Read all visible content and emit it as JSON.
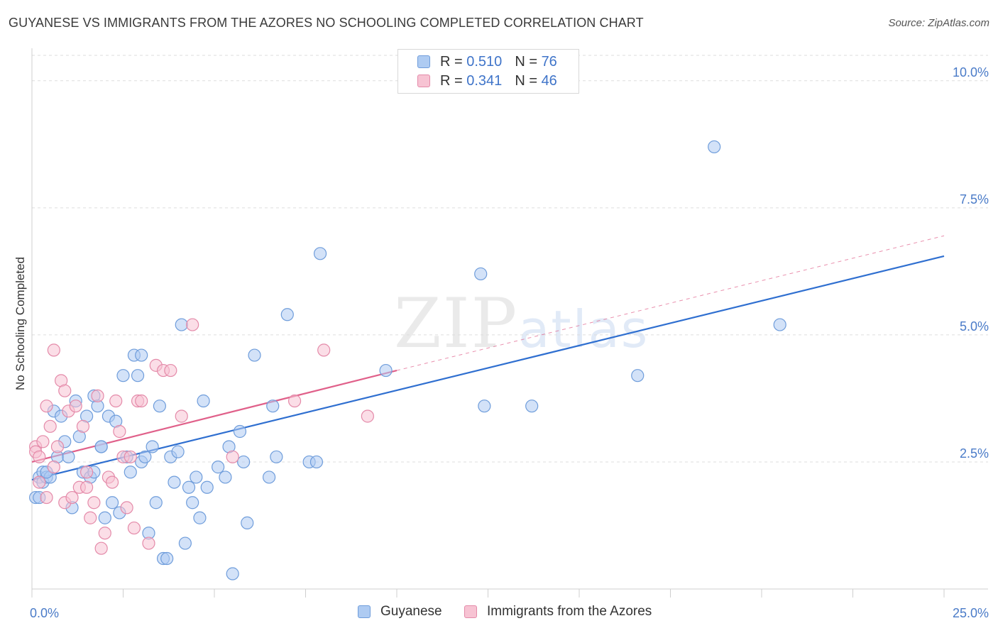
{
  "title": "GUYANESE VS IMMIGRANTS FROM THE AZORES NO SCHOOLING COMPLETED CORRELATION CHART",
  "source": "Source: ZipAtlas.com",
  "watermark": {
    "zip": "ZIP",
    "atlas": "atlas"
  },
  "legend_top": [
    {
      "r_label": "R = ",
      "r_value": "0.510",
      "n_label": "N = ",
      "n_value": "76"
    },
    {
      "r_label": "R = ",
      "r_value": "0.341",
      "n_label": "N = ",
      "n_value": "46"
    }
  ],
  "colors": {
    "blue_fill": "#aecbf2",
    "blue_stroke": "#6f9ddb",
    "blue_line": "#2f6fd0",
    "pink_fill": "#f7c3d3",
    "pink_stroke": "#e48aa9",
    "pink_line": "#e0608a",
    "grid": "#dddddd",
    "tick_text": "#4a7bc8"
  },
  "chart_data": {
    "type": "scatter",
    "title": "GUYANESE VS IMMIGRANTS FROM THE AZORES NO SCHOOLING COMPLETED CORRELATION CHART",
    "xlabel": "",
    "ylabel": "No Schooling Completed",
    "xlim": [
      0,
      25
    ],
    "ylim": [
      0,
      10.5
    ],
    "x_tick_labels": [
      "0.0%",
      "25.0%"
    ],
    "y_ticks": [
      2.5,
      5.0,
      7.5,
      10.0
    ],
    "y_tick_labels": [
      "2.5%",
      "5.0%",
      "7.5%",
      "10.0%"
    ],
    "grid": true,
    "legend_position": "top-center",
    "series": [
      {
        "name": "Guyanese",
        "r": 0.51,
        "n": 76,
        "trend": {
          "x": [
            0,
            25
          ],
          "y": [
            2.15,
            6.55
          ]
        },
        "points": [
          [
            0.1,
            1.8
          ],
          [
            0.2,
            2.2
          ],
          [
            0.3,
            2.3
          ],
          [
            0.3,
            2.1
          ],
          [
            0.4,
            2.2
          ],
          [
            0.5,
            2.2
          ],
          [
            0.6,
            3.5
          ],
          [
            0.7,
            2.6
          ],
          [
            0.8,
            3.4
          ],
          [
            0.9,
            2.9
          ],
          [
            1.0,
            2.6
          ],
          [
            1.1,
            1.6
          ],
          [
            1.2,
            3.7
          ],
          [
            1.3,
            3.0
          ],
          [
            1.4,
            2.3
          ],
          [
            1.5,
            3.4
          ],
          [
            1.6,
            2.2
          ],
          [
            1.7,
            2.3
          ],
          [
            1.7,
            3.8
          ],
          [
            1.8,
            3.6
          ],
          [
            1.9,
            2.8
          ],
          [
            1.9,
            2.8
          ],
          [
            2.0,
            1.4
          ],
          [
            2.1,
            3.4
          ],
          [
            2.2,
            1.7
          ],
          [
            2.3,
            3.3
          ],
          [
            2.4,
            1.5
          ],
          [
            2.5,
            4.2
          ],
          [
            2.6,
            2.6
          ],
          [
            2.7,
            2.3
          ],
          [
            2.8,
            4.6
          ],
          [
            2.9,
            4.2
          ],
          [
            3.0,
            2.5
          ],
          [
            3.0,
            4.6
          ],
          [
            3.1,
            2.6
          ],
          [
            3.2,
            1.1
          ],
          [
            3.3,
            2.8
          ],
          [
            3.4,
            1.7
          ],
          [
            3.5,
            3.6
          ],
          [
            3.6,
            0.6
          ],
          [
            3.7,
            0.6
          ],
          [
            3.8,
            2.6
          ],
          [
            3.9,
            2.1
          ],
          [
            4.0,
            2.7
          ],
          [
            4.1,
            5.2
          ],
          [
            4.2,
            0.9
          ],
          [
            4.3,
            2.0
          ],
          [
            4.4,
            1.7
          ],
          [
            4.5,
            2.2
          ],
          [
            4.6,
            1.4
          ],
          [
            4.7,
            3.7
          ],
          [
            4.8,
            2.0
          ],
          [
            5.1,
            2.4
          ],
          [
            5.3,
            2.2
          ],
          [
            5.4,
            2.8
          ],
          [
            5.5,
            0.3
          ],
          [
            5.7,
            3.1
          ],
          [
            5.8,
            2.5
          ],
          [
            5.9,
            1.3
          ],
          [
            6.1,
            4.6
          ],
          [
            6.6,
            3.6
          ],
          [
            6.5,
            2.2
          ],
          [
            6.7,
            2.6
          ],
          [
            7.0,
            5.4
          ],
          [
            7.6,
            2.5
          ],
          [
            7.8,
            2.5
          ],
          [
            7.9,
            6.6
          ],
          [
            9.7,
            4.3
          ],
          [
            12.3,
            6.2
          ],
          [
            12.4,
            3.6
          ],
          [
            13.7,
            3.6
          ],
          [
            16.6,
            4.2
          ],
          [
            18.7,
            8.7
          ],
          [
            20.5,
            5.2
          ],
          [
            0.2,
            1.8
          ],
          [
            0.4,
            2.3
          ]
        ]
      },
      {
        "name": "Immigrants from the Azores",
        "r": 0.341,
        "n": 46,
        "trend": {
          "x": [
            0,
            10
          ],
          "y": [
            2.5,
            4.3
          ]
        },
        "trend_extension": {
          "x": [
            10,
            25
          ],
          "y": [
            4.3,
            6.95
          ]
        },
        "points": [
          [
            0.1,
            2.8
          ],
          [
            0.1,
            2.7
          ],
          [
            0.2,
            2.1
          ],
          [
            0.3,
            2.9
          ],
          [
            0.4,
            1.8
          ],
          [
            0.4,
            3.6
          ],
          [
            0.5,
            3.2
          ],
          [
            0.6,
            2.4
          ],
          [
            0.6,
            4.7
          ],
          [
            0.7,
            2.8
          ],
          [
            0.8,
            4.1
          ],
          [
            0.9,
            3.9
          ],
          [
            0.9,
            1.7
          ],
          [
            1.0,
            3.5
          ],
          [
            1.1,
            1.8
          ],
          [
            1.2,
            3.6
          ],
          [
            1.3,
            2.0
          ],
          [
            1.4,
            3.2
          ],
          [
            1.5,
            2.0
          ],
          [
            1.6,
            1.4
          ],
          [
            1.7,
            1.7
          ],
          [
            1.8,
            3.8
          ],
          [
            1.9,
            0.8
          ],
          [
            2.0,
            1.1
          ],
          [
            2.1,
            2.2
          ],
          [
            2.2,
            2.1
          ],
          [
            2.3,
            3.7
          ],
          [
            2.4,
            3.1
          ],
          [
            2.5,
            2.6
          ],
          [
            2.6,
            1.6
          ],
          [
            2.7,
            2.6
          ],
          [
            2.8,
            1.2
          ],
          [
            2.9,
            3.7
          ],
          [
            3.0,
            3.7
          ],
          [
            3.2,
            0.9
          ],
          [
            3.4,
            4.4
          ],
          [
            3.6,
            4.3
          ],
          [
            3.8,
            4.3
          ],
          [
            4.1,
            3.4
          ],
          [
            4.4,
            5.2
          ],
          [
            5.5,
            2.6
          ],
          [
            7.2,
            3.7
          ],
          [
            8.0,
            4.7
          ],
          [
            9.2,
            3.4
          ],
          [
            0.2,
            2.6
          ],
          [
            1.5,
            2.3
          ]
        ]
      }
    ]
  }
}
